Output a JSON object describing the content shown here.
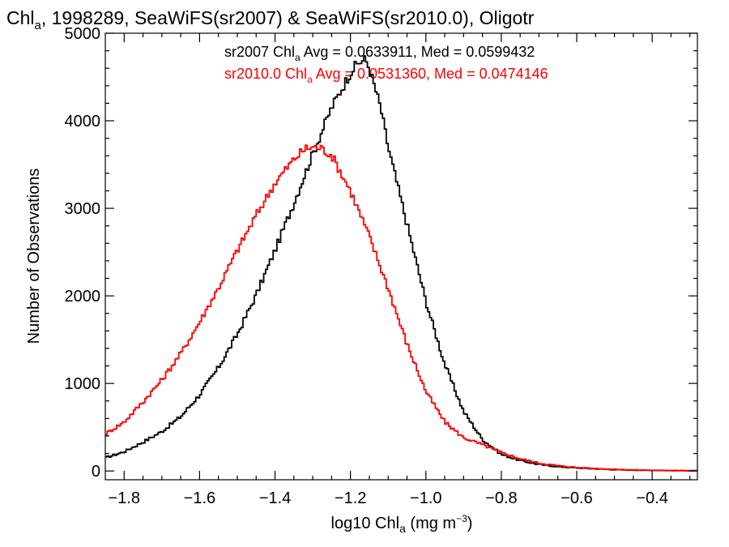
{
  "chart_data": {
    "type": "line",
    "title": {
      "pre": "Chl",
      "sub": "a",
      "post": ", 1998289, SeaWiFS(sr2007) & SeaWiFS(sr2010.0), Oligotr"
    },
    "xlabel": {
      "pre": "log10 Chl",
      "sub": "a",
      "mid": " (mg m",
      "sup": "−3",
      "post": ")"
    },
    "ylabel": "Number of Observations",
    "xlim": [
      -1.85,
      -0.28
    ],
    "ylim": [
      -100,
      5000
    ],
    "xticks": [
      -1.8,
      -1.6,
      -1.4,
      -1.2,
      -1.0,
      -0.8,
      -0.6,
      -0.4
    ],
    "xtick_labels": [
      "−1.8",
      "−1.6",
      "−1.4",
      "−1.2",
      "−1.0",
      "−0.8",
      "−0.6",
      "−0.4"
    ],
    "yticks": [
      0,
      1000,
      2000,
      3000,
      4000,
      5000
    ],
    "ytick_labels": [
      "0",
      "1000",
      "2000",
      "3000",
      "4000",
      "5000"
    ],
    "grid": false,
    "stats": [
      {
        "name": "sr2007",
        "color": "#000000",
        "pre": "sr2007 Chl",
        "sub": "a",
        "post": " Avg = 0.0633911, Med = 0.0599432"
      },
      {
        "name": "sr2010.0",
        "color": "#ff0000",
        "pre": "sr2010.0 Chl",
        "sub": "a",
        "post": " Avg = 0.0531360, Med = 0.0474146"
      }
    ],
    "series": [
      {
        "name": "sr2007",
        "color": "#000000",
        "x": [
          -1.85,
          -1.8,
          -1.75,
          -1.7,
          -1.65,
          -1.6,
          -1.55,
          -1.5,
          -1.45,
          -1.4,
          -1.35,
          -1.3,
          -1.25,
          -1.2,
          -1.18,
          -1.16,
          -1.15,
          -1.12,
          -1.1,
          -1.05,
          -1.0,
          -0.95,
          -0.9,
          -0.85,
          -0.8,
          -0.75,
          -0.7,
          -0.65,
          -0.6,
          -0.55,
          -0.5,
          -0.45,
          -0.4,
          -0.35,
          -0.28
        ],
        "y": [
          150,
          220,
          330,
          450,
          620,
          870,
          1180,
          1560,
          2010,
          2520,
          3060,
          3620,
          4150,
          4550,
          4660,
          4700,
          4600,
          4150,
          3700,
          2820,
          1940,
          1220,
          680,
          360,
          190,
          120,
          75,
          50,
          35,
          25,
          15,
          10,
          8,
          5,
          3
        ]
      },
      {
        "name": "sr2010.0",
        "color": "#ff0000",
        "x": [
          -1.85,
          -1.8,
          -1.75,
          -1.7,
          -1.65,
          -1.6,
          -1.55,
          -1.5,
          -1.45,
          -1.4,
          -1.35,
          -1.32,
          -1.3,
          -1.28,
          -1.25,
          -1.2,
          -1.15,
          -1.1,
          -1.05,
          -1.0,
          -0.95,
          -0.9,
          -0.85,
          -0.8,
          -0.75,
          -0.7,
          -0.65,
          -0.6,
          -0.55,
          -0.5,
          -0.45,
          -0.4,
          -0.35,
          -0.28
        ],
        "y": [
          420,
          560,
          790,
          1040,
          1340,
          1700,
          2090,
          2520,
          2920,
          3290,
          3560,
          3680,
          3700,
          3690,
          3610,
          3200,
          2680,
          2090,
          1450,
          910,
          560,
          380,
          300,
          210,
          140,
          90,
          60,
          40,
          28,
          18,
          12,
          8,
          5,
          3
        ]
      }
    ]
  }
}
